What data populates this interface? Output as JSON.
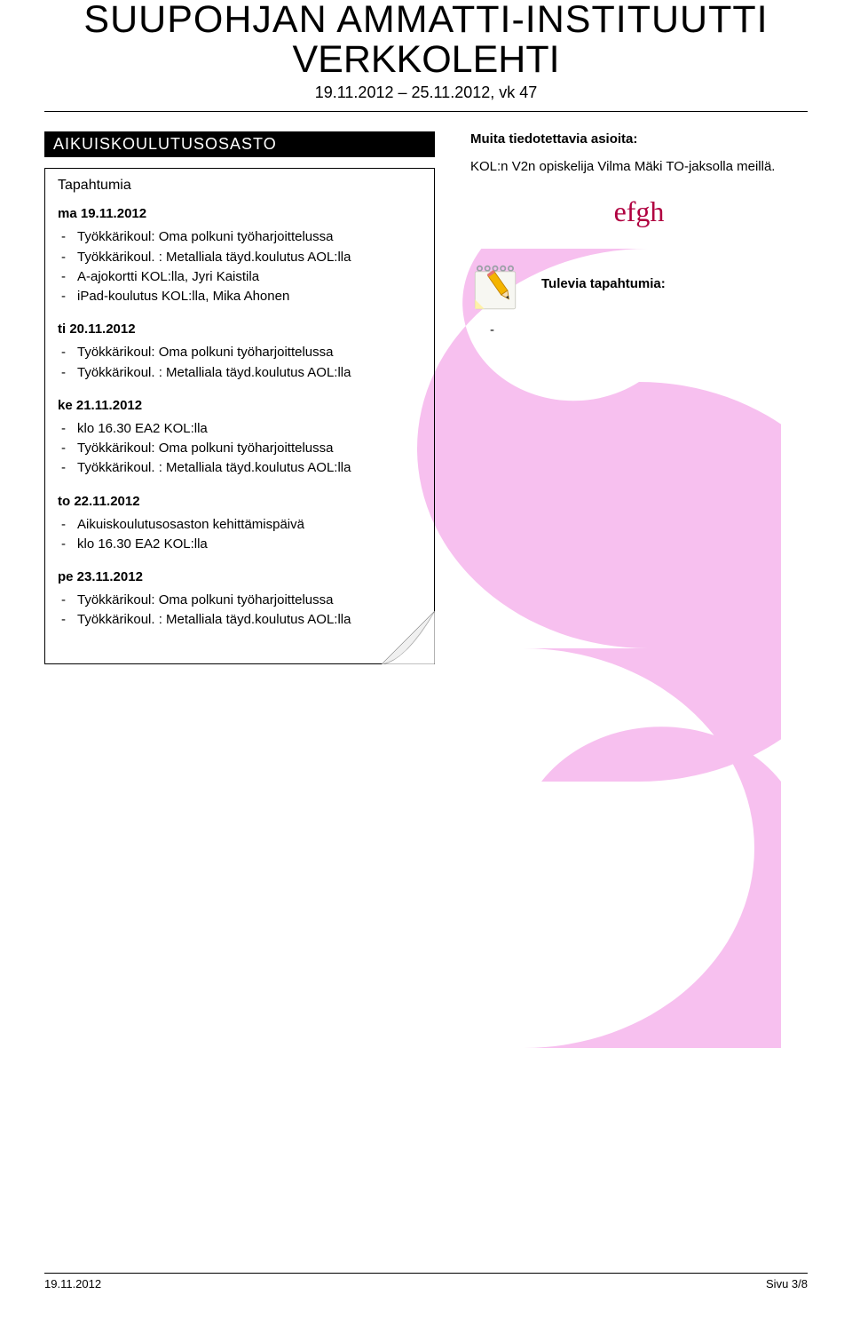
{
  "colors": {
    "text": "#000000",
    "background": "#ffffff",
    "banner_bg": "#000000",
    "banner_text": "#ffffff",
    "pink_shape": "#f7c0ef",
    "flourish": "#b00040",
    "note_spiral": "#9aa0a6",
    "note_paper": "#f7f7f2",
    "note_corner": "#fff1a8",
    "pencil": "#f4b400"
  },
  "masthead": {
    "title_line1": "SUUPOHJAN AMMATTI-INSTITUUTTI",
    "title_line2": "VERKKOLEHTI",
    "dateline": "19.11.2012 – 25.11.2012, vk 47"
  },
  "left": {
    "section_band": "AIKUISKOULUTUSOSASTO",
    "events_title": "Tapahtumia",
    "days": [
      {
        "heading": "ma 19.11.2012",
        "items": [
          "Työkkärikoul: Oma polkuni työharjoittelussa",
          "Työkkärikoul. : Metalliala täyd.koulutus AOL:lla",
          "A-ajokortti KOL:lla, Jyri Kaistila",
          "iPad-koulutus KOL:lla, Mika Ahonen"
        ]
      },
      {
        "heading": "ti 20.11.2012",
        "items": [
          "Työkkärikoul: Oma polkuni työharjoittelussa",
          "Työkkärikoul. : Metalliala täyd.koulutus AOL:lla"
        ]
      },
      {
        "heading": "ke 21.11.2012",
        "items": [
          "klo 16.30 EA2 KOL:lla",
          "Työkkärikoul: Oma polkuni työharjoittelussa",
          "Työkkärikoul. : Metalliala täyd.koulutus AOL:lla"
        ]
      },
      {
        "heading": "to 22.11.2012",
        "items": [
          "Aikuiskoulutusosaston kehittämispäivä",
          "klo 16.30 EA2 KOL:lla"
        ]
      },
      {
        "heading": "pe 23.11.2012",
        "items": [
          "Työkkärikoul: Oma polkuni työharjoittelussa",
          "Työkkärikoul. : Metalliala täyd.koulutus AOL:lla"
        ]
      }
    ]
  },
  "right": {
    "other_heading": "Muita tiedotettavia asioita:",
    "other_body": "KOL:n V2n opiskelija Vilma Mäki TO-jaksolla meillä.",
    "flourish": "efgh",
    "upcoming_title": "Tulevia tapahtumia:",
    "dash_marker": "-"
  },
  "footer": {
    "left": "19.11.2012",
    "right": "Sivu 3/8"
  }
}
